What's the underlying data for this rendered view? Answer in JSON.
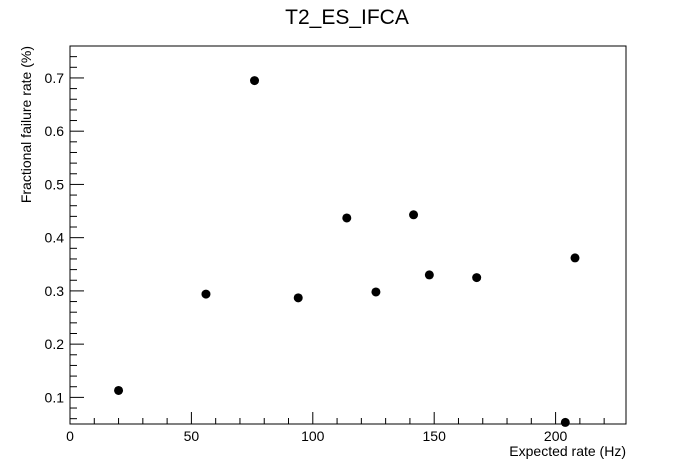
{
  "chart_data": {
    "type": "scatter",
    "title": "T2_ES_IFCA",
    "xlabel": "Expected rate (Hz)",
    "ylabel": "Fractional failure rate (%)",
    "xlim": [
      0,
      229
    ],
    "ylim": [
      0.05,
      0.76
    ],
    "xticks": [
      0,
      50,
      100,
      150,
      200
    ],
    "yticks": [
      0.1,
      0.2,
      0.3,
      0.4,
      0.5,
      0.6,
      0.7
    ],
    "grid": false,
    "marker_color": "#000000",
    "series": [
      {
        "points": [
          {
            "x": 20,
            "y": 0.113
          },
          {
            "x": 56,
            "y": 0.294
          },
          {
            "x": 76,
            "y": 0.695
          },
          {
            "x": 94,
            "y": 0.287
          },
          {
            "x": 114,
            "y": 0.437
          },
          {
            "x": 126,
            "y": 0.298
          },
          {
            "x": 141.5,
            "y": 0.443
          },
          {
            "x": 148,
            "y": 0.33
          },
          {
            "x": 167.5,
            "y": 0.325
          },
          {
            "x": 204,
            "y": 0.053
          },
          {
            "x": 208,
            "y": 0.362
          }
        ]
      }
    ]
  }
}
